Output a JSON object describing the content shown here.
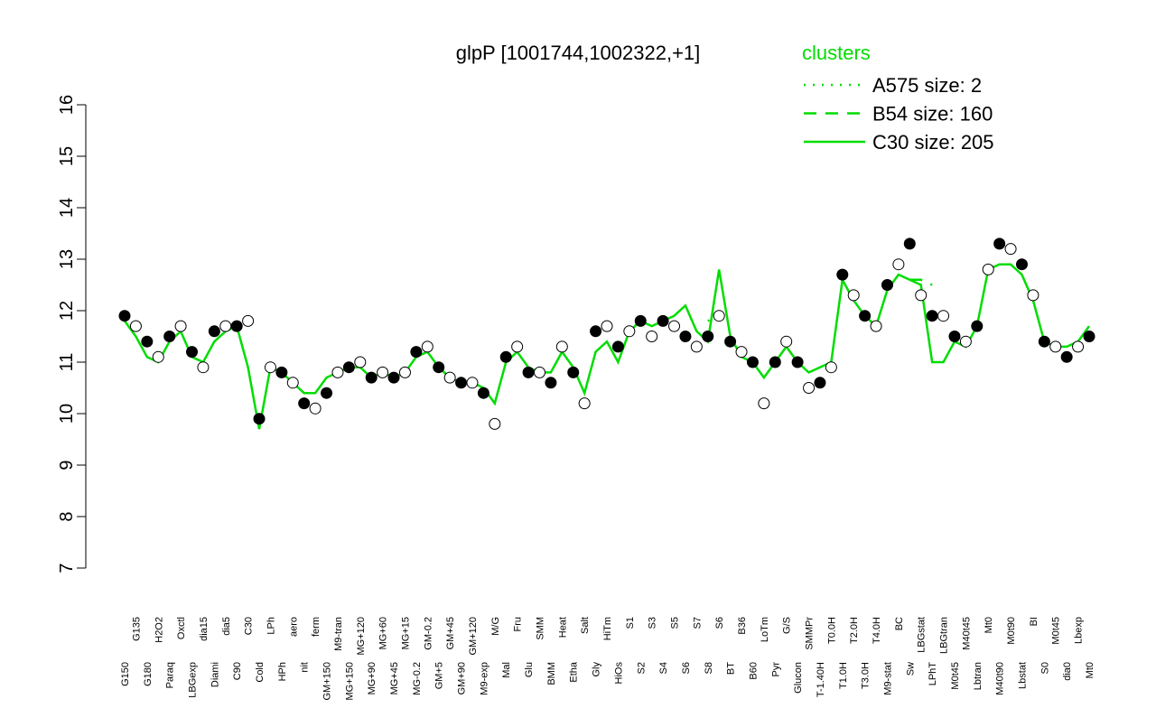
{
  "chart_data": {
    "type": "line",
    "title": "glpP [1001744,1002322,+1]",
    "categories": [
      "G150",
      "G135",
      "G180",
      "H2O2",
      "Paraq",
      "Oxctl",
      "LBGexp",
      "dia15",
      "Diami",
      "dia5",
      "C90",
      "C30",
      "Cold",
      "LPh",
      "HPh",
      "aero",
      "nit",
      "ferm",
      "GM+150",
      "M9-tran",
      "MG+150",
      "MG+120",
      "MG+90",
      "MG+60",
      "MG+45",
      "MG+15",
      "MG-0.2",
      "GM-0.2",
      "GM+5",
      "GM+45",
      "GM+90",
      "GM+120",
      "M9-exp",
      "M/G",
      "Mal",
      "Fru",
      "Glu",
      "SMM",
      "BMM",
      "Heat",
      "Etha",
      "Salt",
      "Gly",
      "HiTm",
      "HiOs",
      "S1",
      "S2",
      "S3",
      "S4",
      "S5",
      "S6",
      "S7",
      "S8",
      "S6",
      "BT",
      "B36",
      "B60",
      "LoTm",
      "Pyr",
      "G/S",
      "Glucon",
      "SMMPr",
      "T-1.40H",
      "T0.0H",
      "T1.0H",
      "T2.0H",
      "T3.0H",
      "T4.0H",
      "M9-stat",
      "BC",
      "Sw",
      "LBGstat",
      "LPhT",
      "LBGtran",
      "M0t45",
      "M40t45",
      "Lbtran",
      "Mt0",
      "M40t90",
      "M0t90",
      "Lbstat",
      "BI",
      "S0",
      "M0t45",
      "dia0",
      "Lbexp",
      "Mt0"
    ],
    "values": [
      11.9,
      11.7,
      11.4,
      11.1,
      11.5,
      11.7,
      11.2,
      10.9,
      11.6,
      11.7,
      11.7,
      11.8,
      9.9,
      10.9,
      10.8,
      10.6,
      10.2,
      10.1,
      10.4,
      10.8,
      10.9,
      11.0,
      10.7,
      10.8,
      10.7,
      10.8,
      11.2,
      11.3,
      10.9,
      10.7,
      10.6,
      10.6,
      10.4,
      9.8,
      11.1,
      11.3,
      10.8,
      10.8,
      10.6,
      11.3,
      10.8,
      10.2,
      11.6,
      11.7,
      11.3,
      11.6,
      11.8,
      11.5,
      11.8,
      11.7,
      11.5,
      11.3,
      11.5,
      11.9,
      11.4,
      11.2,
      11.0,
      10.2,
      11.0,
      11.4,
      11.0,
      10.5,
      10.6,
      10.9,
      12.7,
      12.3,
      11.9,
      11.7,
      12.5,
      12.9,
      13.3,
      12.3,
      11.9,
      11.9,
      11.5,
      11.4,
      11.7,
      12.8,
      13.3,
      13.2,
      12.9,
      12.3,
      11.4,
      11.3,
      11.1,
      11.3,
      11.5
    ],
    "marker_colors": [
      "#000000",
      "#ffffff"
    ],
    "series": [
      {
        "name": "A575 size: 2",
        "color": "#00dd00",
        "style": "dotted",
        "values": [
          null,
          null,
          null,
          null,
          null,
          null,
          null,
          null,
          null,
          null,
          null,
          null,
          null,
          null,
          null,
          null,
          null,
          null,
          null,
          null,
          null,
          null,
          null,
          null,
          null,
          null,
          null,
          null,
          null,
          null,
          null,
          null,
          null,
          null,
          null,
          null,
          null,
          null,
          null,
          null,
          null,
          null,
          null,
          null,
          null,
          null,
          null,
          null,
          null,
          null,
          null,
          null,
          11.8,
          11.9,
          null,
          null,
          null,
          null,
          null,
          null,
          null,
          null,
          null,
          null,
          null,
          null,
          null,
          null,
          null,
          null,
          null,
          null,
          null,
          null,
          null,
          null,
          null,
          null,
          null,
          null,
          null,
          null,
          null,
          null,
          null,
          null,
          null
        ]
      },
      {
        "name": "B54 size: 160",
        "color": "#00dd00",
        "style": "dashed",
        "values": [
          null,
          null,
          null,
          null,
          null,
          null,
          null,
          null,
          null,
          null,
          null,
          null,
          null,
          null,
          null,
          null,
          null,
          null,
          null,
          null,
          null,
          null,
          null,
          null,
          null,
          null,
          null,
          null,
          null,
          null,
          null,
          null,
          null,
          null,
          null,
          null,
          null,
          null,
          null,
          null,
          null,
          null,
          null,
          null,
          null,
          null,
          null,
          null,
          null,
          null,
          null,
          null,
          null,
          null,
          null,
          null,
          null,
          null,
          null,
          null,
          null,
          null,
          null,
          null,
          null,
          null,
          null,
          null,
          null,
          null,
          12.6,
          12.6,
          12.5,
          null,
          null,
          null,
          null,
          null,
          null,
          null,
          null,
          null,
          null,
          null,
          null,
          null,
          null
        ]
      },
      {
        "name": "C30 size: 205",
        "color": "#00dd00",
        "style": "solid",
        "values": [
          11.8,
          11.5,
          11.1,
          11.0,
          11.4,
          11.6,
          11.1,
          11.0,
          11.4,
          11.6,
          11.7,
          10.9,
          9.7,
          10.9,
          10.8,
          10.6,
          10.4,
          10.4,
          10.7,
          10.8,
          10.9,
          10.9,
          10.7,
          10.8,
          10.7,
          10.8,
          11.1,
          11.2,
          10.9,
          10.7,
          10.6,
          10.6,
          10.5,
          10.2,
          11.0,
          11.2,
          10.9,
          10.8,
          10.8,
          11.2,
          10.9,
          10.4,
          11.2,
          11.4,
          11.0,
          11.6,
          11.8,
          11.7,
          11.8,
          11.9,
          12.1,
          11.6,
          11.4,
          12.8,
          11.5,
          11.1,
          11.0,
          10.7,
          11.0,
          11.3,
          11.0,
          10.8,
          10.9,
          11.0,
          12.6,
          12.2,
          11.9,
          11.7,
          12.4,
          12.7,
          12.6,
          12.5,
          11.0,
          11.0,
          11.4,
          11.3,
          11.7,
          12.8,
          12.9,
          12.9,
          12.7,
          12.2,
          11.4,
          11.3,
          11.3,
          11.4,
          11.7
        ]
      }
    ],
    "legend_title": "clusters",
    "legend_color": "#00dd00",
    "ylim": [
      7,
      16
    ],
    "yticks": [
      7,
      8,
      9,
      10,
      11,
      12,
      13,
      14,
      15,
      16
    ]
  }
}
